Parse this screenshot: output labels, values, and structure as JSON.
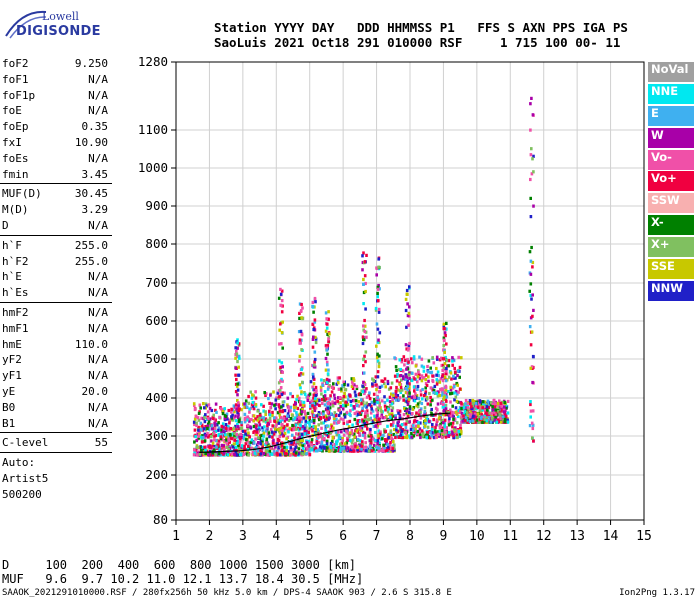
{
  "logo": {
    "line1": "Lowell",
    "line2": "DIGISONDE"
  },
  "header": {
    "labels": "Station YYYY DAY   DDD HHMMSS P1   FFS S AXN PPS IGA PS",
    "values": "SaoLuis 2021 Oct18 291 010000 RSF     1 715 100 00- 11"
  },
  "params": [
    {
      "k": "foF2",
      "v": "9.250"
    },
    {
      "k": "foF1",
      "v": "N/A"
    },
    {
      "k": "foF1p",
      "v": "N/A"
    },
    {
      "k": "foE",
      "v": "N/A"
    },
    {
      "k": "foEp",
      "v": "0.35"
    },
    {
      "k": "fxI",
      "v": "10.90"
    },
    {
      "k": "foEs",
      "v": "N/A"
    },
    {
      "k": "fmin",
      "v": "3.45"
    },
    {
      "k": "MUF(D)",
      "v": "30.45"
    },
    {
      "k": "M(D)",
      "v": "3.29"
    },
    {
      "k": "D",
      "v": "N/A"
    },
    {
      "k": "h`F",
      "v": "255.0"
    },
    {
      "k": "h`F2",
      "v": "255.0"
    },
    {
      "k": "h`E",
      "v": "N/A"
    },
    {
      "k": "h`Es",
      "v": "N/A"
    },
    {
      "k": "hmF2",
      "v": "N/A"
    },
    {
      "k": "hmF1",
      "v": "N/A"
    },
    {
      "k": "hmE",
      "v": "110.0"
    },
    {
      "k": "yF2",
      "v": "N/A"
    },
    {
      "k": "yF1",
      "v": "N/A"
    },
    {
      "k": "yE",
      "v": "20.0"
    },
    {
      "k": "B0",
      "v": "N/A"
    },
    {
      "k": "B1",
      "v": "N/A"
    },
    {
      "k": "C-level",
      "v": "55"
    }
  ],
  "autoscale": [
    "Auto:",
    "Artist5",
    "500200"
  ],
  "legend": [
    {
      "label": "NoVal",
      "color": "#a0a0a0"
    },
    {
      "label": "NNE",
      "color": "#00e8f0"
    },
    {
      "label": "E",
      "color": "#3fb0f0"
    },
    {
      "label": "W",
      "color": "#a800a8"
    },
    {
      "label": "Vo-",
      "color": "#f050a8"
    },
    {
      "label": "Vo+",
      "color": "#f00040"
    },
    {
      "label": "SSW",
      "color": "#f8b0b0"
    },
    {
      "label": "X-",
      "color": "#008000"
    },
    {
      "label": "X+",
      "color": "#80c060"
    },
    {
      "label": "SSE",
      "color": "#c8c800"
    },
    {
      "label": "NNW",
      "color": "#2020c8"
    }
  ],
  "mufTable": {
    "dRow": "D     100  200  400  600  800 1000 1500 3000 [km]",
    "mufRow": "MUF   9.6  9.7 10.2 11.0 12.1 13.7 18.4 30.5 [MHz]"
  },
  "footer": "SAAOK_2021291010000.RSF / 280fx256h 50 kHz 5.0 km / DPS-4 SAAOK 903 / 2.6 S 315.8 E",
  "version": "Ion2Png 1.3.17",
  "chart_data": {
    "type": "scatter",
    "x_ticks": [
      "1",
      "2",
      "3",
      "4",
      "5",
      "6",
      "7",
      "8",
      "9",
      "10",
      "11",
      "12",
      "13",
      "14",
      "15"
    ],
    "y_ticks": [
      "80",
      "200",
      "300",
      "400",
      "500",
      "600",
      "700",
      "800",
      "900",
      "1000",
      "1100",
      "1280"
    ],
    "xlim": [
      1,
      15
    ],
    "grid": true,
    "trace": {
      "x": [
        1.7,
        2.3,
        2.9,
        3.3,
        3.8,
        4.3,
        4.8,
        5.3,
        5.8,
        6.3,
        6.8,
        7.3,
        7.8,
        8.3,
        8.8,
        9.2
      ],
      "y": [
        258,
        260,
        262,
        265,
        272,
        283,
        295,
        305,
        315,
        323,
        332,
        340,
        345,
        352,
        358,
        360
      ]
    },
    "echo_bands": [
      {
        "x_from": 1.5,
        "x_to": 3.0,
        "y_from": 255,
        "y_to": 390
      },
      {
        "x_from": 3.0,
        "x_to": 5.0,
        "y_from": 255,
        "y_to": 420
      },
      {
        "x_from": 5.0,
        "x_to": 7.5,
        "y_from": 265,
        "y_to": 460
      },
      {
        "x_from": 7.5,
        "x_to": 9.5,
        "y_from": 300,
        "y_to": 510
      },
      {
        "x_from": 9.5,
        "x_to": 10.9,
        "y_from": 340,
        "y_to": 400
      }
    ],
    "spread_columns": [
      {
        "x": 2.8,
        "y_from": 340,
        "y_to": 560
      },
      {
        "x": 4.1,
        "y_from": 300,
        "y_to": 690
      },
      {
        "x": 4.7,
        "y_from": 300,
        "y_to": 650
      },
      {
        "x": 5.1,
        "y_from": 310,
        "y_to": 680
      },
      {
        "x": 5.5,
        "y_from": 320,
        "y_to": 640
      },
      {
        "x": 6.6,
        "y_from": 330,
        "y_to": 800
      },
      {
        "x": 7.0,
        "y_from": 330,
        "y_to": 780
      },
      {
        "x": 7.9,
        "y_from": 360,
        "y_to": 700
      },
      {
        "x": 9.0,
        "y_from": 360,
        "y_to": 600
      },
      {
        "x": 11.6,
        "y_from": 290,
        "y_to": 1200
      }
    ]
  }
}
